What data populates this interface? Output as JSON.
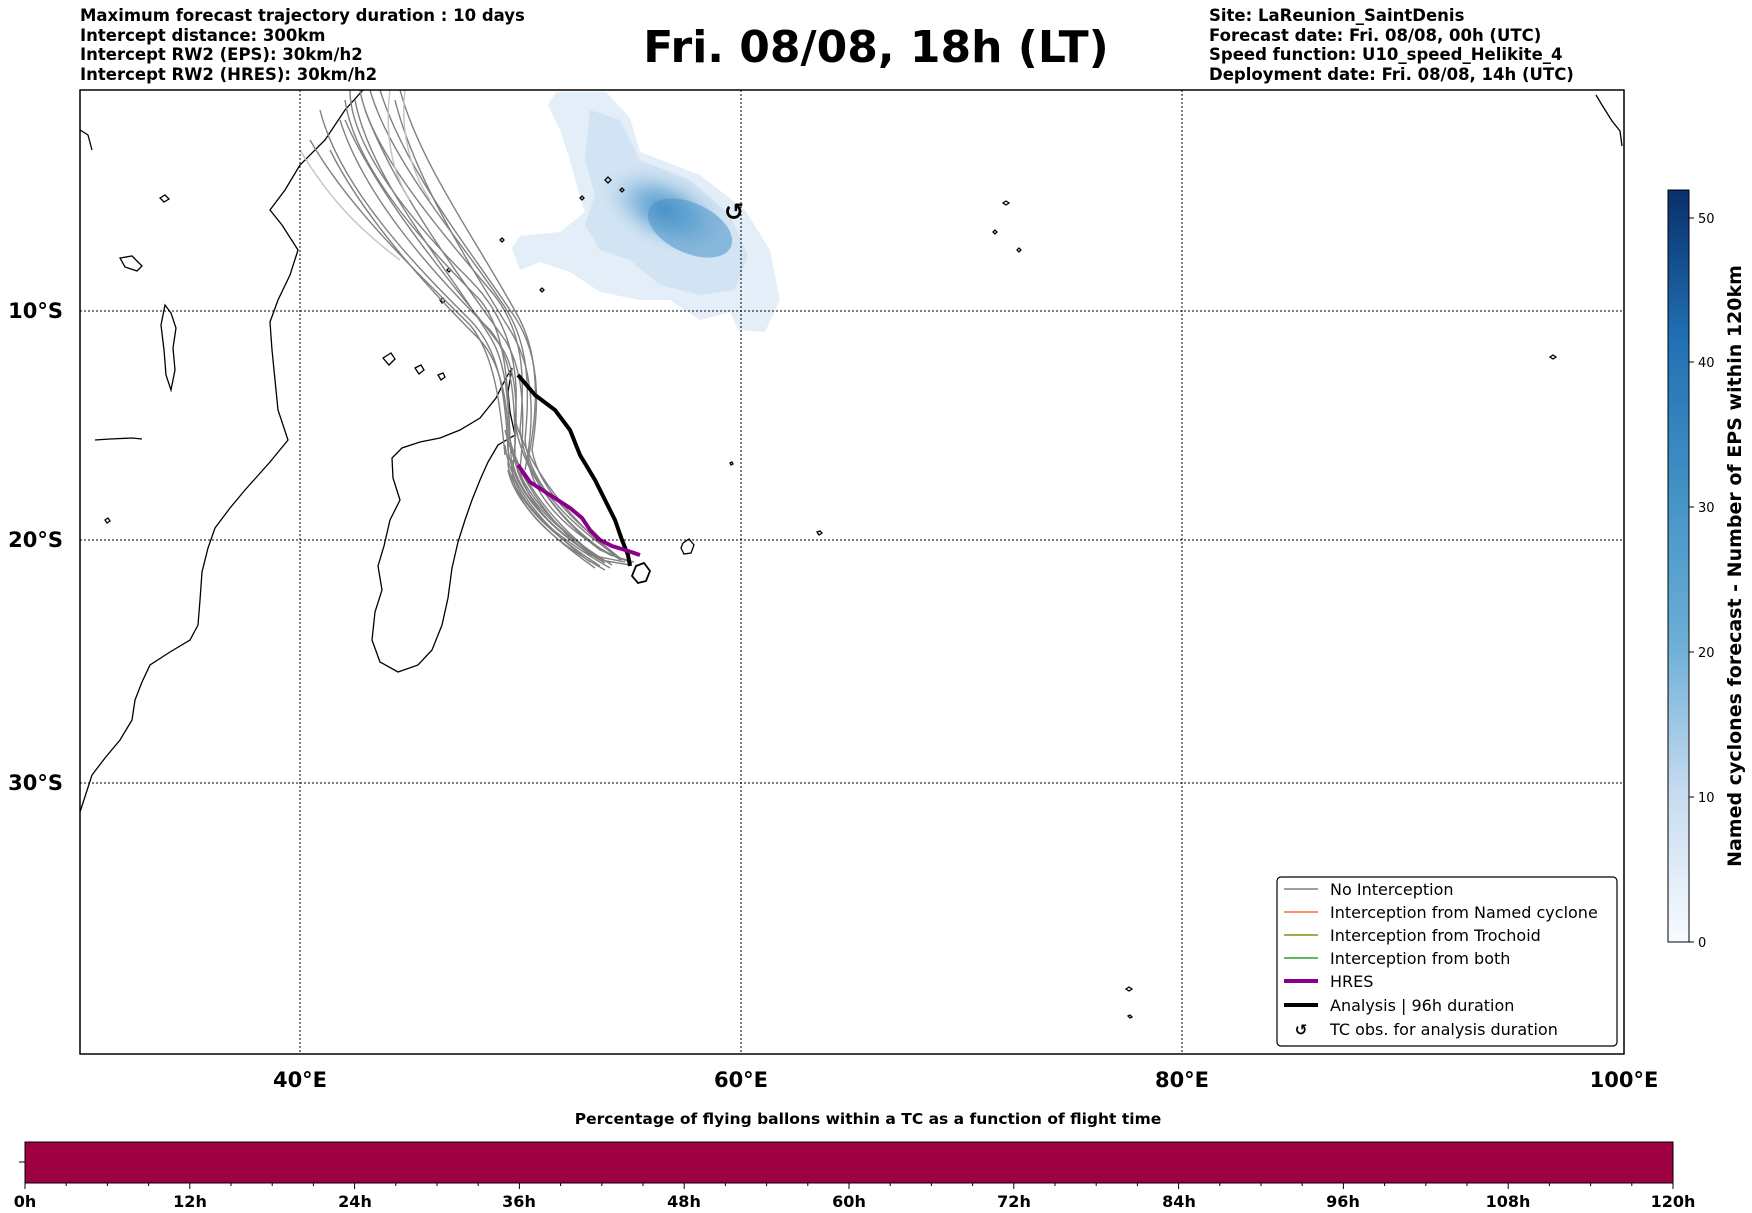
{
  "header_left": [
    "Maximum forecast trajectory duration : 10 days",
    "Intercept distance: 300km",
    "Intercept RW2 (EPS):  30km/h2",
    "Intercept RW2 (HRES): 30km/h2"
  ],
  "title": "Fri. 08/08, 18h (LT)",
  "header_right": [
    "Site: LaReunion_SaintDenis",
    "Forecast date: Fri. 08/08, 00h (UTC)",
    "Speed function: U10_speed_Helikite_4",
    "Deployment date: Fri. 08/08, 14h (UTC)"
  ],
  "map": {
    "lon_ticks": [
      "40°E",
      "60°E",
      "80°E",
      "100°E"
    ],
    "lat_ticks": [
      "10°S",
      "20°S",
      "30°S"
    ],
    "gridlines": "dotted"
  },
  "legend": {
    "placement": "lower-right",
    "items": [
      {
        "label": "No Interception",
        "color": "#808080",
        "style": "thin-line"
      },
      {
        "label": "Interception from Named cyclone",
        "color": "#ff6a33",
        "style": "thin-line"
      },
      {
        "label": "Interception from Trochoid",
        "color": "#8b8b1a",
        "style": "thin-line"
      },
      {
        "label": "Interception from both",
        "color": "#2ca02c",
        "style": "thin-line"
      },
      {
        "label": "HRES",
        "color": "#8b008b",
        "style": "thick-line"
      },
      {
        "label": "Analysis | 96h duration",
        "color": "#000000",
        "style": "thick-line"
      },
      {
        "label": "TC obs. for analysis duration",
        "color": "#000000",
        "style": "cyclone-symbol"
      }
    ]
  },
  "colorbar_right": {
    "label": "Named cyclones forecast - Number of EPS within 120km",
    "ticks": [
      "0",
      "10",
      "20",
      "30",
      "40",
      "50"
    ],
    "colormap": "Blues"
  },
  "colorbar_bottom": {
    "title": "Percentage of flying ballons within a TC as a function of flight time",
    "ticks": [
      "0h",
      "12h",
      "24h",
      "36h",
      "48h",
      "60h",
      "72h",
      "84h",
      "96h",
      "108h",
      "120h"
    ],
    "fill_color": "#9e0142"
  },
  "tc_symbol": "↺"
}
